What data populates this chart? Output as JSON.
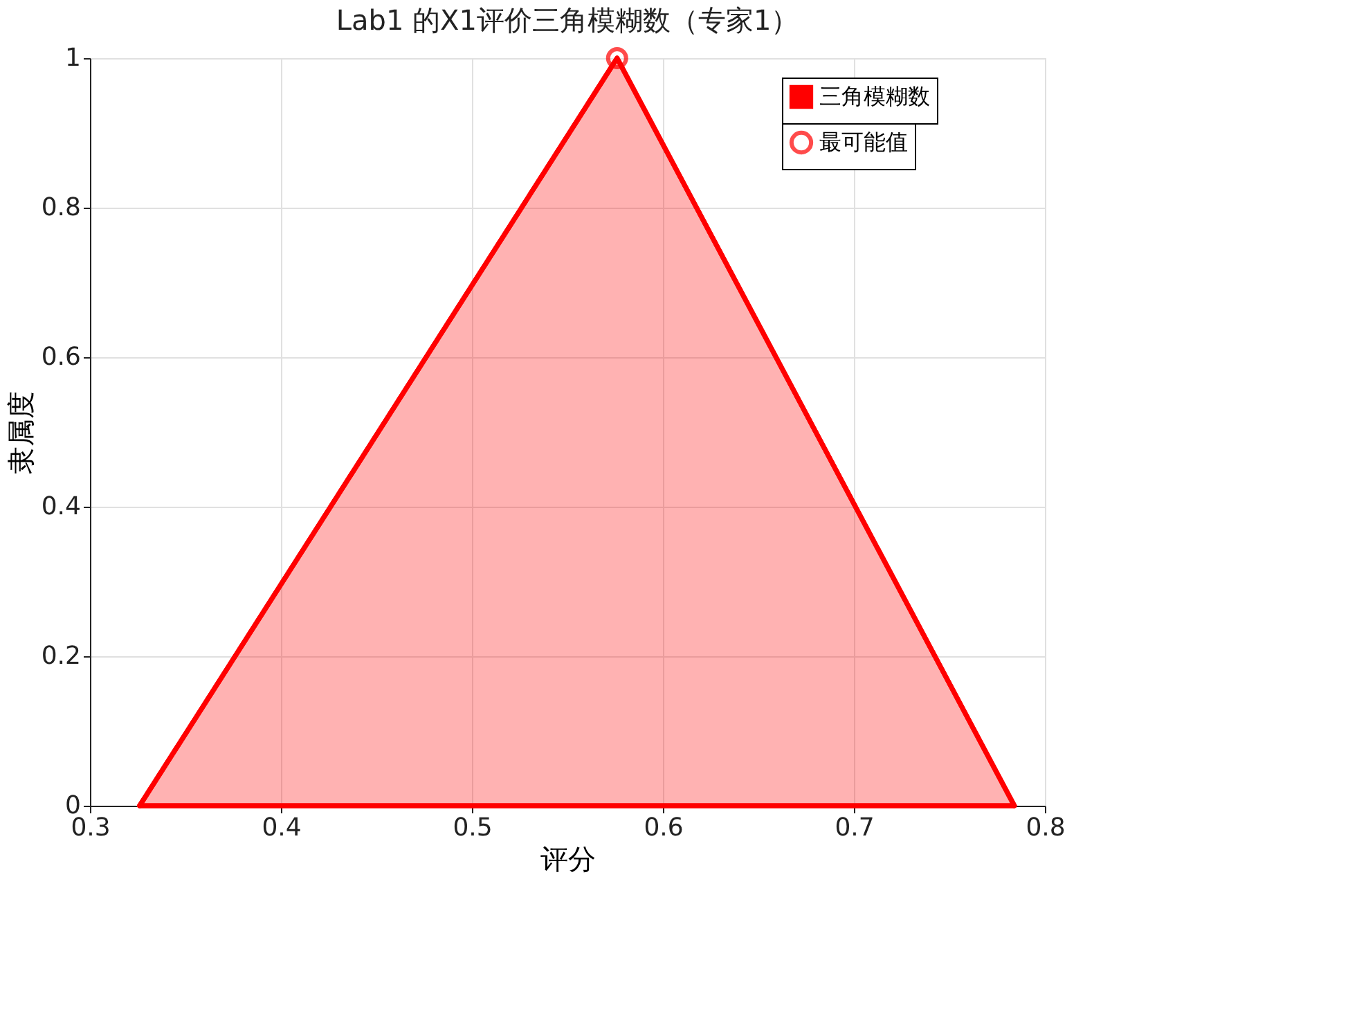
{
  "chart_data": {
    "type": "area",
    "title": "Lab1 的X1评价三角模糊数（专家1）",
    "xlabel": "评分",
    "ylabel": "隶属度",
    "series": [
      {
        "name": "三角模糊数",
        "type": "area",
        "color": "#ff0000",
        "x": [
          0.326,
          0.576,
          0.784
        ],
        "values": [
          0,
          1,
          0
        ]
      },
      {
        "name": "最可能值",
        "type": "scatter",
        "color": "#ff0000",
        "x": [
          0.576
        ],
        "values": [
          1
        ],
        "marker": "circle"
      }
    ],
    "xlim": [
      0.3,
      0.8
    ],
    "xticks": [
      0.3,
      0.4,
      0.5,
      0.6,
      0.7,
      0.8
    ],
    "ylim": [
      0,
      1
    ],
    "yticks": [
      0,
      0.2,
      0.4,
      0.6,
      0.8,
      1
    ],
    "grid": true,
    "legend": "top right"
  }
}
